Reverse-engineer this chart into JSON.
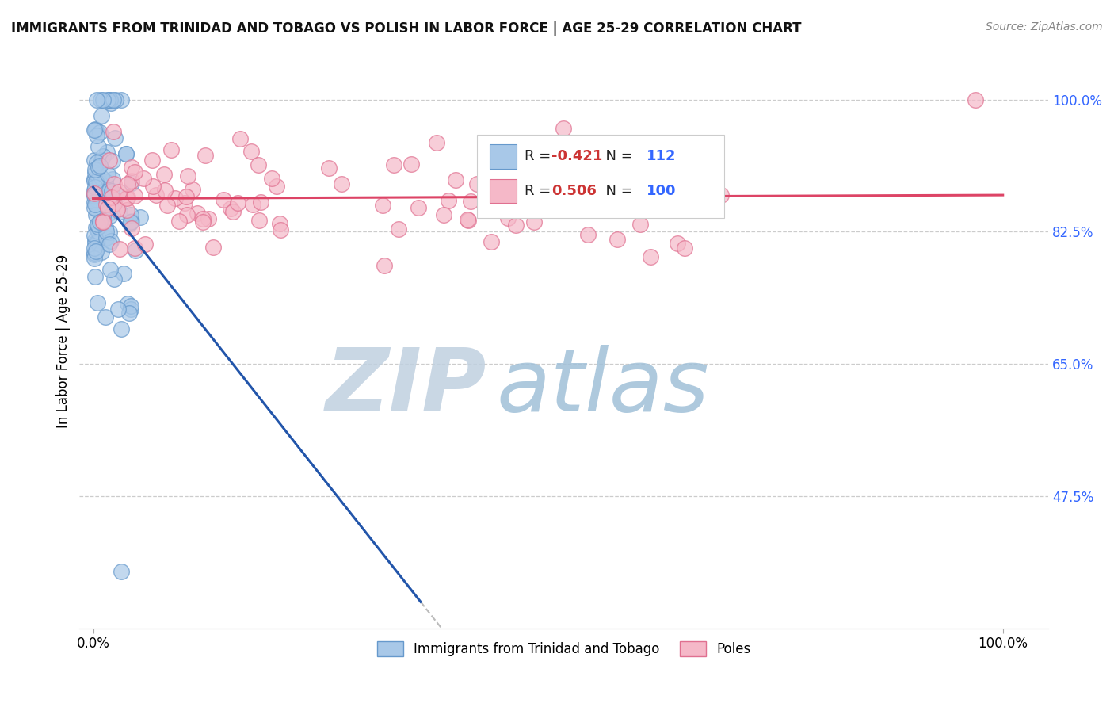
{
  "title": "IMMIGRANTS FROM TRINIDAD AND TOBAGO VS POLISH IN LABOR FORCE | AGE 25-29 CORRELATION CHART",
  "source_text": "Source: ZipAtlas.com",
  "ylabel": "In Labor Force | Age 25-29",
  "watermark_zip": "ZIP",
  "watermark_atlas": "atlas",
  "legend_entries": [
    {
      "label": "Immigrants from Trinidad and Tobago",
      "color": "#a8c8e8",
      "edge": "#6699cc",
      "R": -0.421,
      "N": 112,
      "R_color": "#cc3333",
      "N_color": "#3366ff"
    },
    {
      "label": "Poles",
      "color": "#f5b8c8",
      "edge": "#e07090",
      "R": 0.506,
      "N": 100,
      "R_color": "#cc3333",
      "N_color": "#3366ff"
    }
  ],
  "ytick_labels": [
    "100.0%",
    "82.5%",
    "65.0%",
    "47.5%"
  ],
  "ytick_values": [
    1.0,
    0.825,
    0.65,
    0.475
  ],
  "xtick_labels": [
    "0.0%",
    "100.0%"
  ],
  "xtick_values": [
    0.0,
    1.0
  ],
  "xlim": [
    -0.015,
    1.05
  ],
  "ylim": [
    0.3,
    1.06
  ],
  "trend_blue_color": "#2255aa",
  "trend_pink_color": "#dd4466",
  "trend_dash_color": "#bbbbbb",
  "grid_color": "#cccccc",
  "title_color": "#111111",
  "ytick_color": "#3366ff",
  "watermark_zip_color": "#c0d0e0",
  "watermark_atlas_color": "#a0c0d8",
  "background_color": "#ffffff",
  "seed": 42
}
